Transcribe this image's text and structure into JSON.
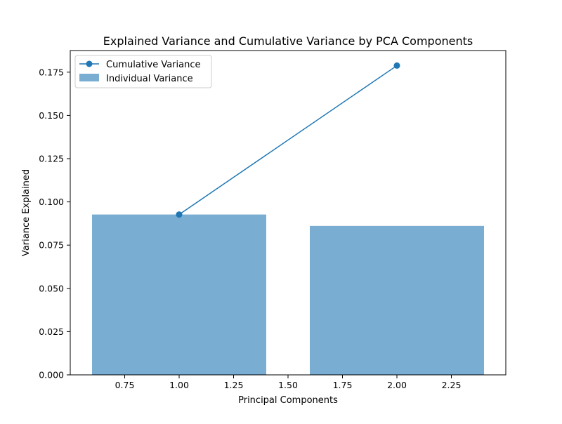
{
  "chart_data": {
    "type": "bar",
    "title": "Explained Variance and Cumulative Variance by PCA Components",
    "xlabel": "Principal Components",
    "ylabel": "Variance Explained",
    "xlim": [
      0.5,
      2.5
    ],
    "ylim": [
      0,
      0.1875
    ],
    "xticks": [
      0.75,
      1.0,
      1.25,
      1.5,
      1.75,
      2.0,
      2.25
    ],
    "xtick_labels": [
      "0.75",
      "1.00",
      "1.25",
      "1.50",
      "1.75",
      "2.00",
      "2.25"
    ],
    "yticks": [
      0,
      0.025,
      0.05,
      0.075,
      0.1,
      0.125,
      0.15,
      0.175
    ],
    "ytick_labels": [
      "0.000",
      "0.025",
      "0.050",
      "0.075",
      "0.100",
      "0.125",
      "0.150",
      "0.175"
    ],
    "grid": false,
    "legend_position": "top-left",
    "bar_width": 0.8,
    "series": [
      {
        "name": "Cumulative Variance",
        "type": "line",
        "marker": "circle",
        "color": "#1f77b4",
        "x": [
          1,
          2
        ],
        "values": [
          0.0927,
          0.1788
        ]
      },
      {
        "name": "Individual Variance",
        "type": "bar",
        "color": "#1f77b4",
        "opacity": 0.6,
        "x": [
          1,
          2
        ],
        "values": [
          0.0927,
          0.0861
        ]
      }
    ]
  }
}
